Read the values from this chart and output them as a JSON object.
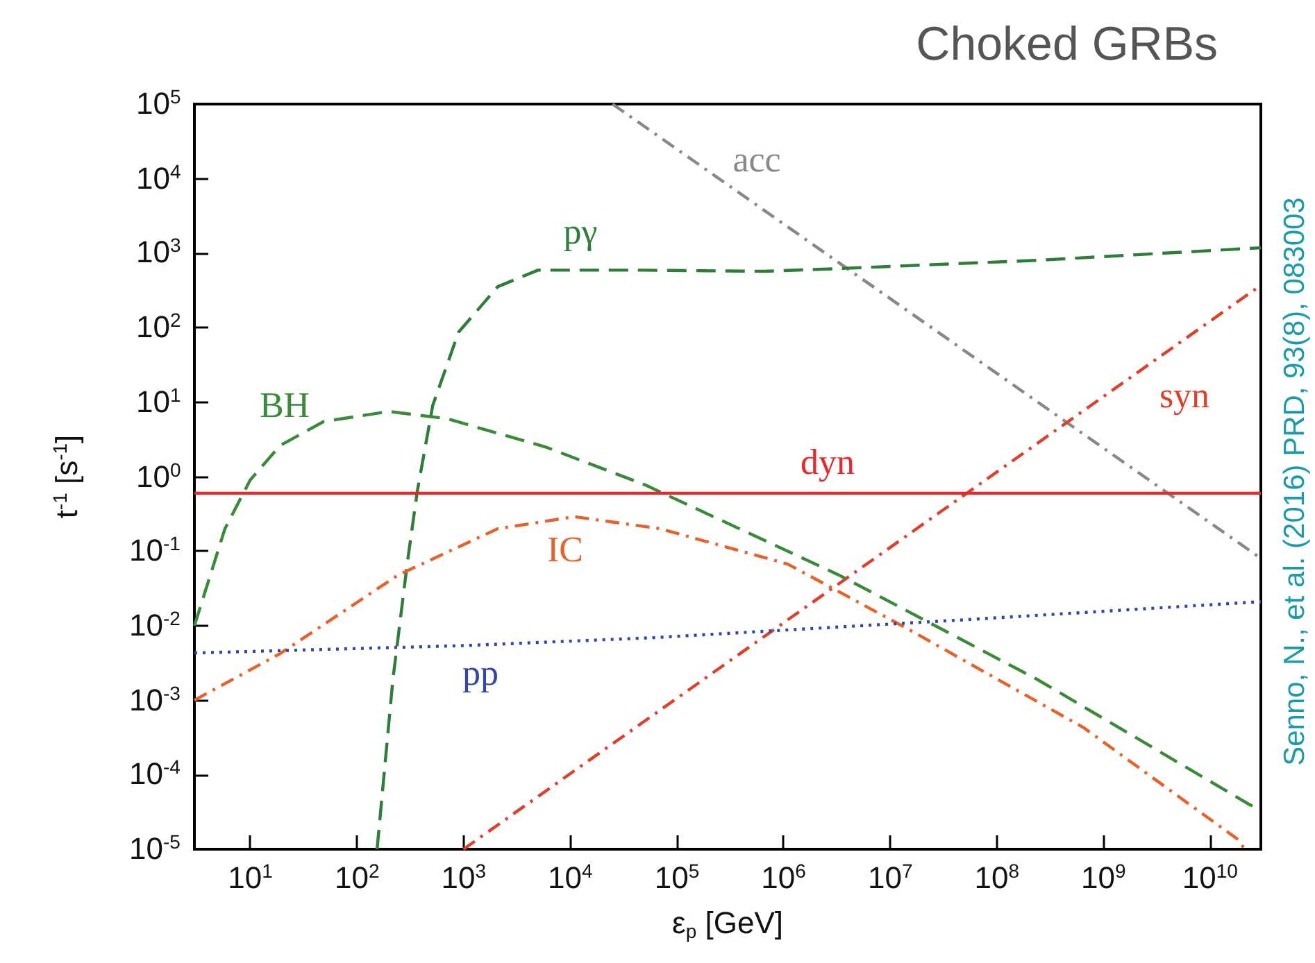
{
  "chart_data": {
    "type": "line",
    "title": "Choked GRBs",
    "xlabel": "ε$_{p}$ [GeV]",
    "ylabel": "t$^{-1}$ [s$^{-1}$]",
    "log": "xy",
    "grid": false,
    "marker": "none",
    "xlim": [
      3,
      30000000000
    ],
    "ylim": [
      1e-05,
      100000
    ],
    "xticks": [
      {
        "value": 10,
        "label": "10$^{1}$"
      },
      {
        "value": 100,
        "label": "10$^{2}$"
      },
      {
        "value": 1000,
        "label": "10$^{3}$"
      },
      {
        "value": 10000,
        "label": "10$^{4}$"
      },
      {
        "value": 100000,
        "label": "10$^{5}$"
      },
      {
        "value": 1000000,
        "label": "10$^{6}$"
      },
      {
        "value": 10000000,
        "label": "10$^{7}$"
      },
      {
        "value": 100000000,
        "label": "10$^{8}$"
      },
      {
        "value": 1000000000,
        "label": "10$^{9}$"
      },
      {
        "value": 10000000000,
        "label": "10$^{10}$"
      }
    ],
    "yticks": [
      {
        "value": 1e-05,
        "label": "10$^{-5}$"
      },
      {
        "value": 0.0001,
        "label": "10$^{-4}$"
      },
      {
        "value": 0.001,
        "label": "10$^{-3}$"
      },
      {
        "value": 0.01,
        "label": "10$^{-2}$"
      },
      {
        "value": 0.1,
        "label": "10$^{-1}$"
      },
      {
        "value": 1,
        "label": "10$^{0}$"
      },
      {
        "value": 10,
        "label": "10$^{1}$"
      },
      {
        "value": 100,
        "label": "10$^{2}$"
      },
      {
        "value": 1000,
        "label": "10$^{3}$"
      },
      {
        "value": 10000,
        "label": "10$^{4}$"
      },
      {
        "value": 100000,
        "label": "10$^{5}$"
      }
    ],
    "series": [
      {
        "name": "acc",
        "color": "#888888",
        "line_style": "dashdot",
        "x": [
          25000,
          30000000000
        ],
        "values": [
          100000,
          0.08
        ]
      },
      {
        "name": "pγ",
        "color": "#2e7d3a",
        "line_style": "dashed",
        "x": [
          155,
          218,
          300,
          370,
          515,
          900,
          2100,
          5000,
          45000,
          660000,
          3300000,
          240000000,
          30000000000
        ],
        "values": [
          1e-05,
          0.0019,
          0.076,
          0.65,
          9,
          87,
          355,
          590,
          590,
          570,
          620,
          800,
          1180
        ]
      },
      {
        "name": "syn",
        "color": "#e0402a",
        "line_style": "dashdot",
        "x": [
          1000,
          30000000000
        ],
        "values": [
          1e-05,
          370
        ]
      },
      {
        "name": "BH",
        "color": "#3a8a3a",
        "line_style": "dashed",
        "x": [
          3,
          5.8,
          10,
          19,
          49,
          200,
          700,
          5900,
          50000,
          3300000,
          240000000,
          24000000000,
          30000000000
        ],
        "values": [
          0.01,
          0.2,
          0.9,
          2.6,
          5.5,
          7.5,
          6,
          2.5,
          0.78,
          0.048,
          0.0019,
          3.9e-05,
          3.5e-05
        ]
      },
      {
        "name": "dyn",
        "color": "#e8282a",
        "line_style": "solid",
        "x": [
          3,
          30000000000
        ],
        "values": [
          0.6,
          0.6
        ]
      },
      {
        "name": "IC",
        "color": "#e8602a",
        "line_style": "dashdot",
        "x": [
          3,
          19,
          245,
          2100,
          11000,
          70000,
          1100000,
          15000000,
          650000000,
          19000000000,
          21000000000
        ],
        "values": [
          0.001,
          0.0042,
          0.048,
          0.2,
          0.29,
          0.2,
          0.067,
          0.0089,
          0.00043,
          1.3e-05,
          1e-05
        ]
      },
      {
        "name": "pp",
        "color": "#3344aa",
        "line_style": "dotted",
        "x": [
          3,
          1000,
          60000,
          50000000,
          30000000000
        ],
        "values": [
          0.0043,
          0.0054,
          0.0069,
          0.012,
          0.021
        ]
      }
    ],
    "annotations": [
      "Senno, N., et al. (2016) PRD, 93(8), 083003"
    ]
  }
}
